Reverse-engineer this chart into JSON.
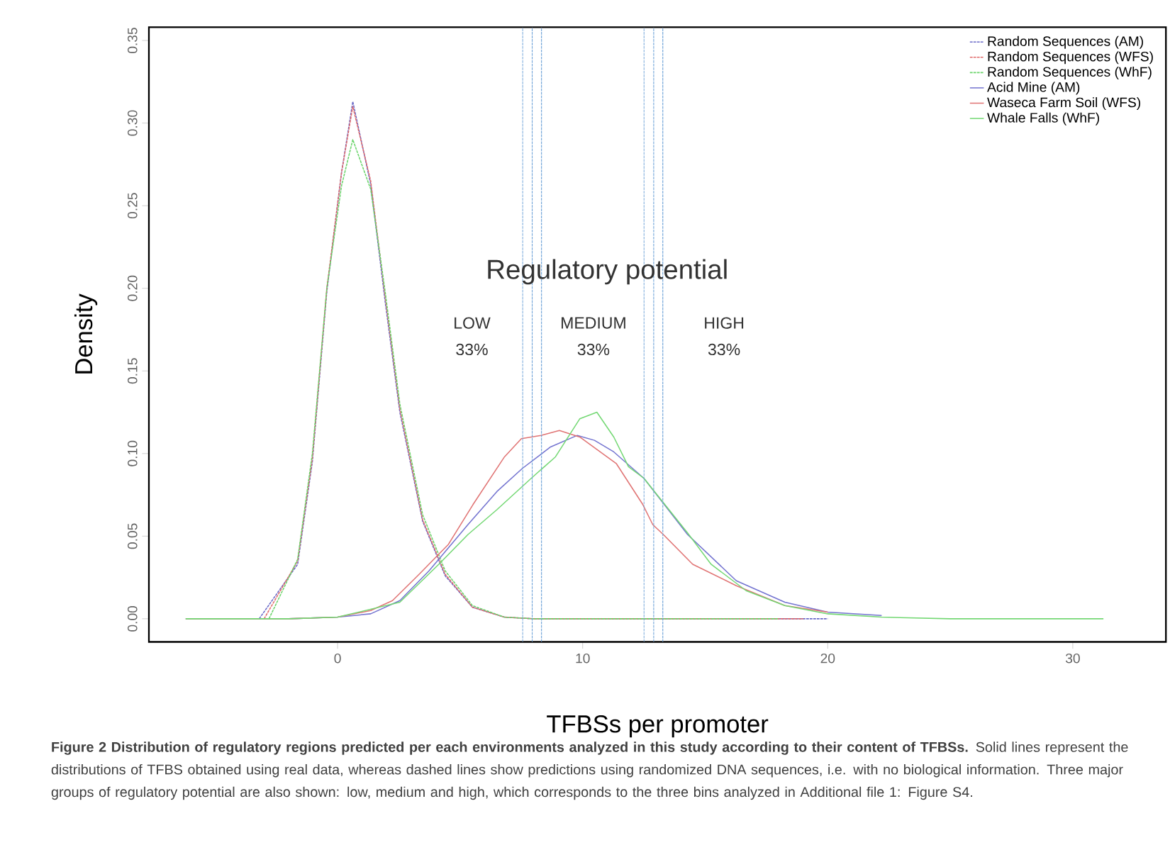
{
  "chart_data": {
    "type": "line",
    "xlabel": "TFBSs per promoter",
    "ylabel": "Density",
    "xlim": [
      -7.7,
      33.8
    ],
    "ylim": [
      -0.014,
      0.358
    ],
    "xticks": [
      0,
      10,
      20,
      30
    ],
    "yticks": [
      {
        "value": 0,
        "label": "0.00"
      },
      {
        "value": 0.05,
        "label": "0.05"
      },
      {
        "value": 0.1,
        "label": "0.10"
      },
      {
        "value": 0.15,
        "label": "0.15"
      },
      {
        "value": 0.2,
        "label": "0.20"
      },
      {
        "value": 0.25,
        "label": "0.25"
      },
      {
        "value": 0.3,
        "label": "0.30"
      },
      {
        "value": 0.35,
        "label": "0.35"
      }
    ],
    "legend": "top right",
    "series": [
      {
        "name": "Random Sequences (AM)",
        "color": "#6a6ac8",
        "line_style": "dashed",
        "x": [
          -3.2,
          -1.63,
          -1.03,
          -0.44,
          0.16,
          0.62,
          1.35,
          1.94,
          2.54,
          3.47,
          4.39,
          5.5,
          6.8,
          8,
          20
        ],
        "values": [
          0,
          0.033,
          0.095,
          0.198,
          0.27,
          0.313,
          0.263,
          0.192,
          0.125,
          0.059,
          0.026,
          0.007,
          0.001,
          0,
          0
        ]
      },
      {
        "name": "Random Sequences (WFS)",
        "color": "#e06a6a",
        "line_style": "dashed",
        "x": [
          -3.0,
          -1.63,
          -1.03,
          -0.44,
          0.16,
          0.62,
          1.35,
          1.94,
          2.54,
          3.47,
          4.39,
          5.5,
          6.8,
          8,
          19
        ],
        "values": [
          0,
          0.035,
          0.097,
          0.2,
          0.27,
          0.31,
          0.265,
          0.195,
          0.127,
          0.06,
          0.027,
          0.007,
          0.001,
          0,
          0
        ]
      },
      {
        "name": "Random Sequences (WhF)",
        "color": "#6ad46a",
        "line_style": "dashed",
        "x": [
          -2.8,
          -1.63,
          -1.03,
          -0.44,
          0.16,
          0.62,
          1.35,
          1.94,
          2.54,
          3.47,
          4.39,
          5.5,
          6.8,
          8,
          18
        ],
        "values": [
          0,
          0.036,
          0.1,
          0.2,
          0.262,
          0.29,
          0.26,
          0.198,
          0.13,
          0.063,
          0.029,
          0.008,
          0.001,
          0,
          0
        ]
      },
      {
        "name": "Acid Mine  (AM)",
        "color": "#7474d0",
        "line_style": "solid",
        "x": [
          -6.2,
          -2,
          0,
          1.35,
          2.54,
          3.73,
          5.32,
          6.5,
          7.54,
          8.69,
          9.78,
          10.48,
          11.27,
          12.5,
          14.28,
          16.27,
          18.25,
          20,
          22.2
        ],
        "values": [
          0,
          0,
          0.001,
          0.003,
          0.011,
          0.029,
          0.057,
          0.077,
          0.091,
          0.104,
          0.111,
          0.108,
          0.101,
          0.085,
          0.051,
          0.023,
          0.01,
          0.004,
          0.002
        ]
      },
      {
        "name": "Waseca Farm Soil (WFS)",
        "color": "#e07474",
        "line_style": "solid",
        "x": [
          -6.2,
          -2,
          0,
          1.35,
          2.24,
          3.33,
          4.52,
          5.52,
          6.81,
          7.5,
          8.3,
          9.05,
          9.88,
          11.37,
          12.46,
          12.86,
          13.29,
          14.49,
          16.27,
          18.25,
          20
        ],
        "values": [
          0,
          0,
          0.001,
          0.005,
          0.011,
          0.027,
          0.045,
          0.069,
          0.098,
          0.109,
          0.111,
          0.114,
          0.11,
          0.094,
          0.069,
          0.057,
          0.051,
          0.033,
          0.02,
          0.008,
          0.004
        ]
      },
      {
        "name": "Whale Falls (WhF)",
        "color": "#74d874",
        "line_style": "solid",
        "x": [
          -6.2,
          -2,
          0,
          2.54,
          4.13,
          5.32,
          6.5,
          7.9,
          8.89,
          9.88,
          10.58,
          11.27,
          11.87,
          12.5,
          14.28,
          15.24,
          16.67,
          18.25,
          20,
          22.2,
          25,
          31.25
        ],
        "values": [
          0,
          0,
          0.001,
          0.01,
          0.033,
          0.051,
          0.066,
          0.085,
          0.098,
          0.121,
          0.125,
          0.11,
          0.092,
          0.085,
          0.052,
          0.033,
          0.017,
          0.008,
          0.003,
          0.001,
          0,
          0
        ]
      }
    ],
    "ref_lines": [
      {
        "axis": "x",
        "value": 7.55,
        "color": "#6fa3d8",
        "line_style": "dashed"
      },
      {
        "axis": "x",
        "value": 7.94,
        "color": "#6fa3d8",
        "line_style": "dashed"
      },
      {
        "axis": "x",
        "value": 8.32,
        "color": "#6fa3d8",
        "line_style": "dashed"
      },
      {
        "axis": "x",
        "value": 12.5,
        "color": "#6fa3d8",
        "line_style": "dashed"
      },
      {
        "axis": "x",
        "value": 12.9,
        "color": "#6fa3d8",
        "line_style": "dashed"
      },
      {
        "axis": "x",
        "value": 13.27,
        "color": "#6fa3d8",
        "line_style": "dashed"
      }
    ],
    "annotations": [
      "Regulatory potential",
      "LOW",
      "33%",
      "MEDIUM",
      "33%",
      "HIGH",
      "33%",
      "**Figure 2 Distribution of regulatory regions predicted per each environments analyzed in this study according to their content of TFBSs.** Solid lines represent the distributions of TFBS obtained using real data, whereas dashed lines show predictions using randomized DNA sequences, i.e. with no biological information. Three major groups of regulatory potential are also shown: low, medium and high, which corresponds to the three bins analyzed in Additional file 1: Figure S4."
    ]
  }
}
